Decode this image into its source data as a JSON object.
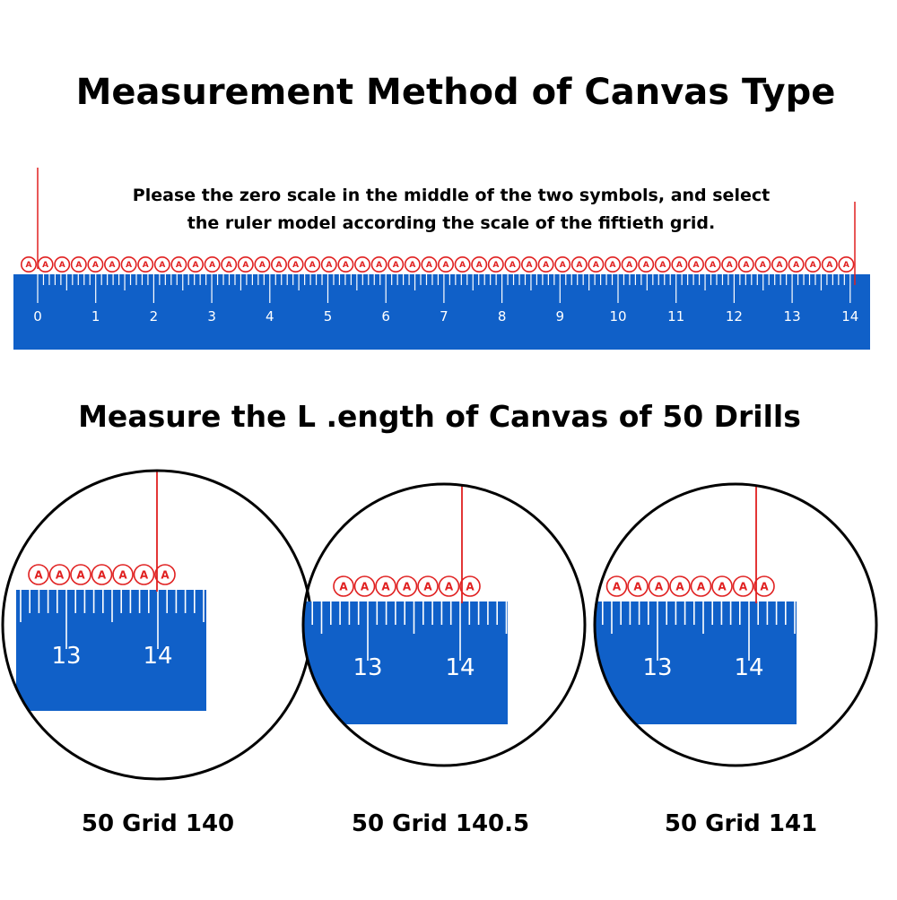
{
  "header": {
    "title": "Measurement Method of Canvas Type",
    "instruction_line1": "Please the zero scale in the middle of the two symbols, and select",
    "instruction_line2": "the ruler model according the scale of the fiftieth grid."
  },
  "ruler": {
    "symbol": "A",
    "symbol_count": 50,
    "labels": [
      "0",
      "1",
      "2",
      "3",
      "4",
      "5",
      "6",
      "7",
      "8",
      "9",
      "10",
      "11",
      "12",
      "13",
      "14"
    ]
  },
  "section2": {
    "title": "Measure the L .ength of Canvas of 50 Drills"
  },
  "magnifiers": [
    {
      "caption": "50 Grid 140",
      "labels": [
        "13",
        "14"
      ],
      "grid_cm": 14.0
    },
    {
      "caption": "50 Grid 140.5",
      "labels": [
        "13",
        "14"
      ],
      "grid_cm": 14.05
    },
    {
      "caption": "50 Grid 141",
      "labels": [
        "13",
        "14"
      ],
      "grid_cm": 14.1
    }
  ],
  "colors": {
    "ruler_blue": "#1060c8",
    "mark_red": "#e02020",
    "ink": "#000000",
    "tick": "#ffffff"
  }
}
